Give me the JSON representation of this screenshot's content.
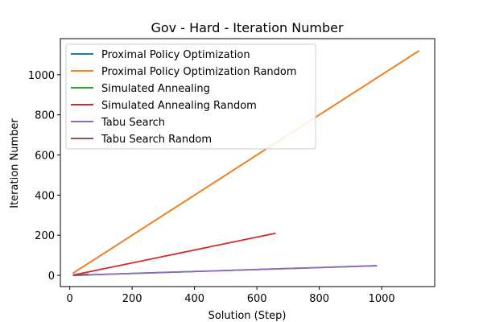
{
  "chart_data": {
    "type": "line",
    "title": "Gov - Hard - Iteration Number",
    "xlabel": "Solution (Step)",
    "ylabel": "Iteration Number",
    "xlim": [
      -30,
      1170
    ],
    "ylim": [
      -56,
      1180
    ],
    "xticks": [
      0,
      200,
      400,
      600,
      800,
      1000
    ],
    "yticks": [
      0,
      200,
      400,
      600,
      800,
      1000
    ],
    "grid": false,
    "legend_position": "upper-left",
    "series": [
      {
        "name": "Proximal Policy Optimization",
        "color": "#1f77b4",
        "x": [
          10,
          1120
        ],
        "y": [
          10,
          1120
        ]
      },
      {
        "name": "Proximal Policy Optimization Random",
        "color": "#ff7f0e",
        "x": [
          10,
          1120
        ],
        "y": [
          10,
          1120
        ]
      },
      {
        "name": "Simulated Annealing",
        "color": "#2ca02c",
        "x": [
          10,
          985
        ],
        "y": [
          0,
          48
        ]
      },
      {
        "name": "Simulated Annealing Random",
        "color": "#d62728",
        "x": [
          10,
          660
        ],
        "y": [
          1,
          210
        ]
      },
      {
        "name": "Tabu Search",
        "color": "#9467bd",
        "x": [
          10,
          985
        ],
        "y": [
          0,
          48
        ]
      },
      {
        "name": "Tabu Search Random",
        "color": "#8c564b",
        "x": [
          10,
          60
        ],
        "y": [
          0,
          5
        ]
      }
    ]
  }
}
